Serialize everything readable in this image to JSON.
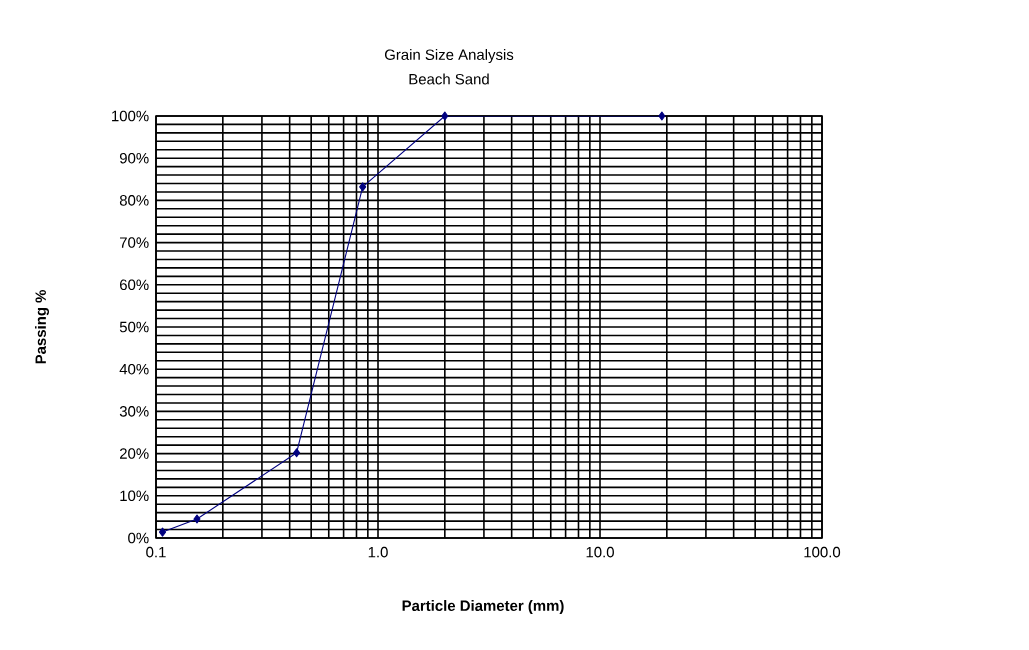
{
  "chart_data": {
    "type": "line",
    "title": "Grain Size Analysis",
    "subtitle": "Beach Sand",
    "xlabel": "Particle Diameter (mm)",
    "ylabel": "Passing %",
    "x": [
      0.107,
      0.153,
      0.43,
      0.853,
      2.0,
      19.0
    ],
    "series": [
      {
        "color": "#000080",
        "values": [
          1.4,
          4.5,
          20.2,
          83.2,
          100,
          100
        ]
      }
    ],
    "log": "x",
    "xlim": [
      0.1,
      100
    ],
    "ylim": [
      0,
      100
    ],
    "xticks": [
      {
        "value": 0.1,
        "label": "0.1"
      },
      {
        "value": 1,
        "label": "1.0"
      },
      {
        "value": 10,
        "label": "10.0"
      },
      {
        "value": 100,
        "label": "100.0"
      }
    ],
    "yticks": [
      {
        "value": 0,
        "label": "0%"
      },
      {
        "value": 10,
        "label": "10%"
      },
      {
        "value": 20,
        "label": "20%"
      },
      {
        "value": 30,
        "label": "30%"
      },
      {
        "value": 40,
        "label": "40%"
      },
      {
        "value": 50,
        "label": "50%"
      },
      {
        "value": 60,
        "label": "60%"
      },
      {
        "value": 70,
        "label": "70%"
      },
      {
        "value": 80,
        "label": "80%"
      },
      {
        "value": 90,
        "label": "90%"
      },
      {
        "value": 100,
        "label": "100%"
      }
    ],
    "grid": true,
    "marker": "diamond",
    "line_style": "solid"
  }
}
